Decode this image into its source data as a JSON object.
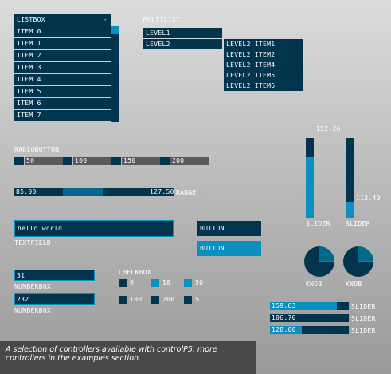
{
  "listbox": {
    "title": "LISTBOX",
    "collapse_glyph": "-",
    "items": [
      "ITEM 0",
      "ITEM 1",
      "ITEM 2",
      "ITEM 3",
      "ITEM 4",
      "ITEM 5",
      "ITEM 6",
      "ITEM 7"
    ]
  },
  "multilist": {
    "title": "MULTILIST",
    "level1": [
      "LEVEL1",
      "LEVEL2"
    ],
    "level2": [
      "LEVEL2 ITEM1",
      "LEVEL2 ITEM2",
      "LEVEL2 ITEM4",
      "LEVEL2 ITEM5",
      "LEVEL2 ITEM6"
    ]
  },
  "radiobutton": {
    "title": "RADIOBUTTON",
    "options": [
      "50",
      "100",
      "150",
      "200"
    ]
  },
  "range": {
    "low": "85.00",
    "high": "127.50",
    "label": "RANGE"
  },
  "vsliders": [
    {
      "label": "SLIDER",
      "value": "152.26",
      "fill": 0.76
    },
    {
      "label": "SLIDER",
      "value": "113.40",
      "fill": 0.2
    }
  ],
  "textfield": {
    "value": "hello world",
    "label": "TEXTFIELD"
  },
  "buttons": [
    {
      "label": "BUTTON"
    },
    {
      "label": "BUTTON"
    }
  ],
  "numberboxes": [
    {
      "value": "31",
      "label": "NUMBERBOX"
    },
    {
      "value": "232",
      "label": "NUMBERBOX"
    }
  ],
  "checkbox": {
    "title": "CHECKBOX",
    "options": [
      "0",
      "10",
      "50",
      "100",
      "200",
      "5"
    ]
  },
  "knobs": [
    {
      "label": "KNOB"
    },
    {
      "label": "KNOB"
    }
  ],
  "hsliders": [
    {
      "value": "159.63",
      "label": "SLIDER",
      "fill": 0.85
    },
    {
      "value": "106.70",
      "label": "SLIDER",
      "fill": 0.0
    },
    {
      "value": "128.00",
      "label": "SLIDER",
      "fill": 0.4
    }
  ],
  "caption": "A selection of controllers available with controlP5, more controllers in the examples section.",
  "colors": {
    "background": "#02344d",
    "foreground": "#00698c",
    "active": "#0a8fc0"
  }
}
